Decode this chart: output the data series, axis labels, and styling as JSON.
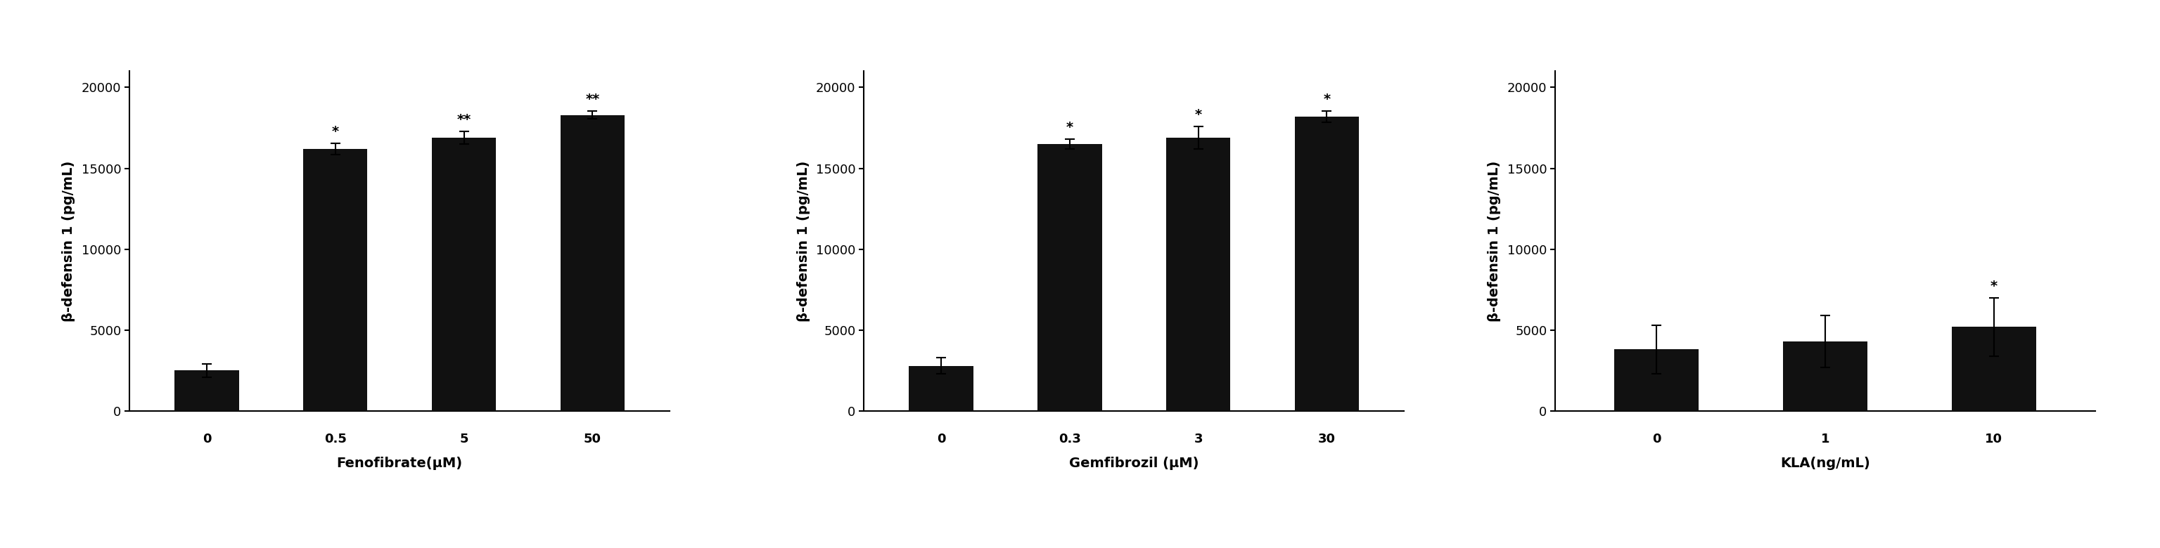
{
  "panels": [
    {
      "xlabel": "Fenofibrate(μM)",
      "ylabel": "β-defensin 1 (pg/mL)",
      "categories": [
        "0",
        "0.5",
        "5",
        "50"
      ],
      "values": [
        2500,
        16200,
        16900,
        18300
      ],
      "errors": [
        400,
        350,
        400,
        250
      ],
      "significance": [
        "",
        "*",
        "**",
        "**"
      ],
      "ylim": [
        0,
        21000
      ],
      "yticks": [
        0,
        5000,
        10000,
        15000,
        20000
      ]
    },
    {
      "xlabel": "Gemfibrozil (μM)",
      "ylabel": "β-defensin 1 (pg/mL)",
      "categories": [
        "0",
        "0.3",
        "3",
        "30"
      ],
      "values": [
        2800,
        16500,
        16900,
        18200
      ],
      "errors": [
        500,
        300,
        700,
        350
      ],
      "significance": [
        "",
        "*",
        "*",
        "*"
      ],
      "ylim": [
        0,
        21000
      ],
      "yticks": [
        0,
        5000,
        10000,
        15000,
        20000
      ]
    },
    {
      "xlabel": "KLA(ng/mL)",
      "ylabel": "β-defensin 1 (pg/mL)",
      "categories": [
        "0",
        "1",
        "10"
      ],
      "values": [
        3800,
        4300,
        5200
      ],
      "errors": [
        1500,
        1600,
        1800
      ],
      "significance": [
        "",
        "",
        "*"
      ],
      "ylim": [
        0,
        21000
      ],
      "yticks": [
        0,
        5000,
        10000,
        15000,
        20000
      ]
    }
  ],
  "bar_color": "#111111",
  "bar_width": 0.5,
  "sig_fontsize": 14,
  "label_fontsize": 14,
  "tick_fontsize": 13,
  "xlabel_fontsize": 14,
  "background_color": "#ffffff"
}
